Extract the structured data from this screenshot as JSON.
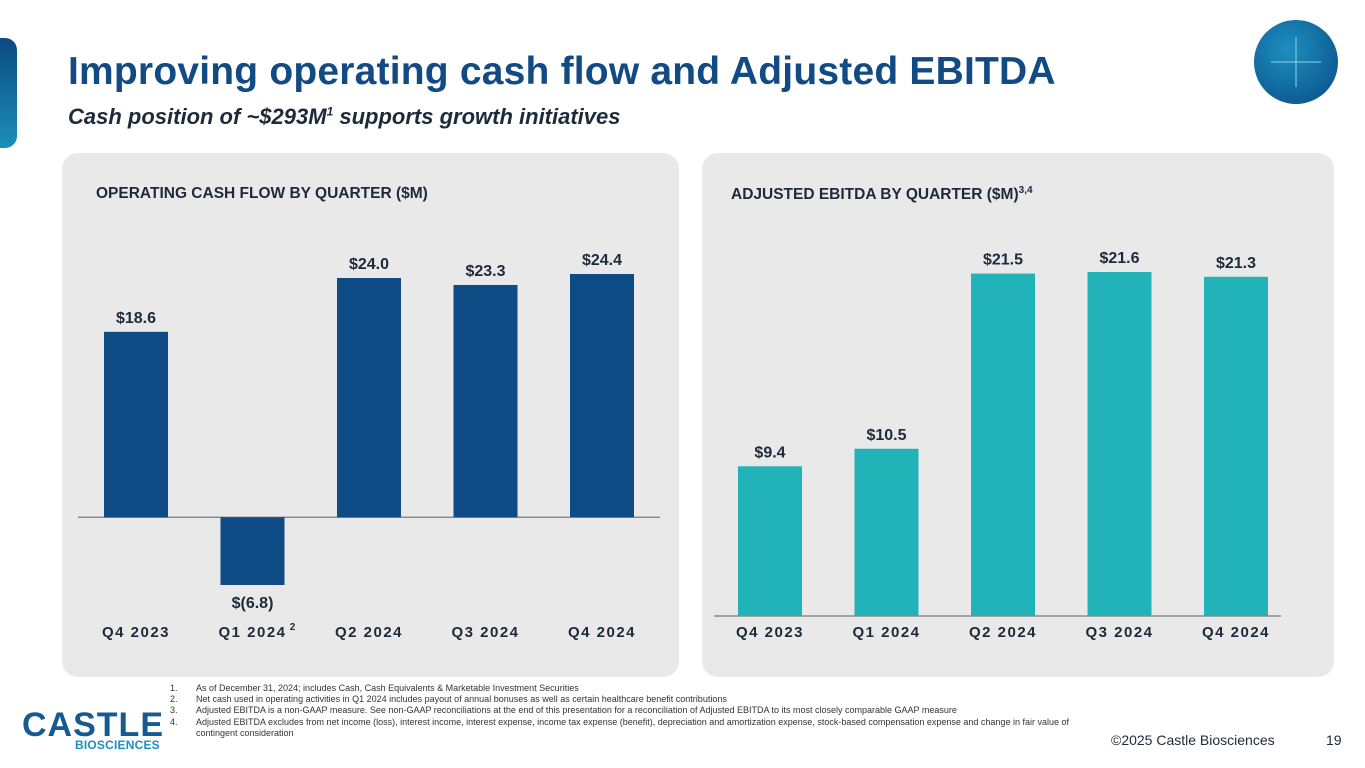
{
  "slide": {
    "title": "Improving operating cash flow and Adjusted EBITDA",
    "subtitle_main": "Cash position of ~$293M",
    "subtitle_sup": "1",
    "subtitle_rest": " supports growth initiatives"
  },
  "colors": {
    "title": "#124b84",
    "cash_bar": "#0f4c85",
    "ebitda_bar": "#22b3b8",
    "panel_bg": "#e9e9ea"
  },
  "chart_data": [
    {
      "type": "bar",
      "title": "OPERATING CASH FLOW BY QUARTER ($M)",
      "title_sup": "",
      "categories": [
        "Q4 2023",
        "Q1 2024",
        "Q2 2024",
        "Q3 2024",
        "Q4 2024"
      ],
      "category_sups": [
        "",
        "2",
        "",
        "",
        ""
      ],
      "values": [
        18.6,
        -6.8,
        24.0,
        23.3,
        24.4
      ],
      "labels": [
        "$18.6",
        "$(6.8)",
        "$24.0",
        "$23.3",
        "$24.4"
      ],
      "ylim": [
        -6.8,
        24.4
      ],
      "xlabel": "",
      "ylabel": "",
      "grid": false,
      "legend": "none"
    },
    {
      "type": "bar",
      "title": "ADJUSTED EBITDA BY QUARTER ($M)",
      "title_sup": "3,4",
      "categories": [
        "Q4 2023",
        "Q1 2024",
        "Q2 2024",
        "Q3 2024",
        "Q4 2024"
      ],
      "category_sups": [
        "",
        "",
        "",
        "",
        ""
      ],
      "values": [
        9.4,
        10.5,
        21.5,
        21.6,
        21.3
      ],
      "labels": [
        "$9.4",
        "$10.5",
        "$21.5",
        "$21.6",
        "$21.3"
      ],
      "ylim": [
        0,
        21.6
      ],
      "xlabel": "",
      "ylabel": "",
      "grid": false,
      "legend": "none"
    }
  ],
  "footnotes": [
    {
      "num": "1.",
      "text": "As of December 31, 2024; includes Cash, Cash Equivalents & Marketable Investment Securities"
    },
    {
      "num": "2.",
      "text": "Net cash used in operating activities in Q1 2024 includes payout of annual bonuses as well as certain healthcare benefit contributions"
    },
    {
      "num": "3.",
      "text": "Adjusted EBITDA is a non-GAAP measure. See non-GAAP reconciliations at the end of this presentation for a reconciliation of Adjusted EBITDA to its most closely comparable GAAP measure"
    },
    {
      "num": "4.",
      "text": "Adjusted EBITDA excludes from net income (loss), interest income, interest expense, income tax expense (benefit), depreciation and amortization expense, stock-based compensation expense and change in fair value of contingent consideration"
    }
  ],
  "logo": {
    "name": "CASTLE",
    "sub": "BIOSCIENCES"
  },
  "footer": {
    "copyright": "©2025 Castle Biosciences",
    "page_number": "19"
  }
}
